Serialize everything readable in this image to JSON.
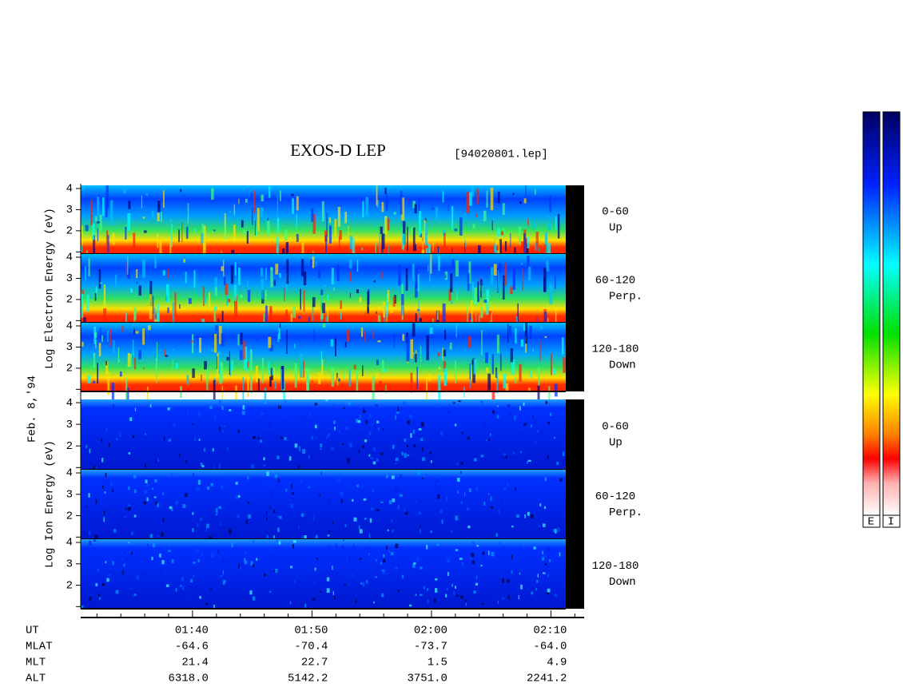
{
  "title": "EXOS-D LEP",
  "file_label": "[94020801.lep]",
  "date_label": "Feb. 8,'94",
  "xlim": [
    90.64,
    132.78
  ],
  "xticks": [
    {
      "value": 100,
      "label": "01:40"
    },
    {
      "value": 110,
      "label": "01:50"
    },
    {
      "value": 120,
      "label": "02:00"
    },
    {
      "value": 130,
      "label": "02:10"
    }
  ],
  "x_minor_ticks": [
    92,
    94,
    96,
    98,
    102,
    104,
    106,
    108,
    112,
    114,
    116,
    118,
    122,
    124,
    126,
    128,
    132
  ],
  "groups": [
    {
      "axis_label": "Log Electron Energy (eV)",
      "panels": [
        {
          "angle": "0-60",
          "direction": "Up",
          "ylim": [
            0.9,
            4.15
          ],
          "yticks": [
            2,
            3,
            4
          ],
          "y_minor_ticks": [
            1
          ]
        },
        {
          "angle": "60-120",
          "direction": "Perp.",
          "ylim": [
            0.9,
            4.15
          ],
          "yticks": [
            2,
            3,
            4
          ],
          "y_minor_ticks": [
            1
          ]
        },
        {
          "angle": "120-180",
          "direction": "Down",
          "ylim": [
            0.9,
            4.15
          ],
          "yticks": [
            2,
            3,
            4
          ],
          "y_minor_ticks": [
            1
          ]
        }
      ]
    },
    {
      "axis_label": "Log Ion Energy (eV)",
      "panels": [
        {
          "angle": "0-60",
          "direction": "Up",
          "ylim": [
            0.9,
            4.15
          ],
          "yticks": [
            2,
            3,
            4
          ],
          "y_minor_ticks": [
            1
          ]
        },
        {
          "angle": "60-120",
          "direction": "Perp.",
          "ylim": [
            0.9,
            4.15
          ],
          "yticks": [
            2,
            3,
            4
          ],
          "y_minor_ticks": [
            1
          ]
        },
        {
          "angle": "120-180",
          "direction": "Down",
          "ylim": [
            0.9,
            4.15
          ],
          "yticks": [
            2,
            3,
            4
          ],
          "y_minor_ticks": [
            1
          ]
        }
      ]
    }
  ],
  "orbit_rows": [
    {
      "label": "UT",
      "values": []
    },
    {
      "label": "MLAT",
      "values": [
        "-64.6",
        "-70.4",
        "-73.7",
        "-64.0"
      ]
    },
    {
      "label": "MLT",
      "values": [
        "21.4",
        "22.7",
        "1.5",
        "4.9"
      ]
    },
    {
      "label": "ALT",
      "values": [
        "6318.0",
        "5142.2",
        "3751.0",
        "2241.2"
      ]
    }
  ],
  "colorbar_labels": [
    "E",
    "I"
  ]
}
